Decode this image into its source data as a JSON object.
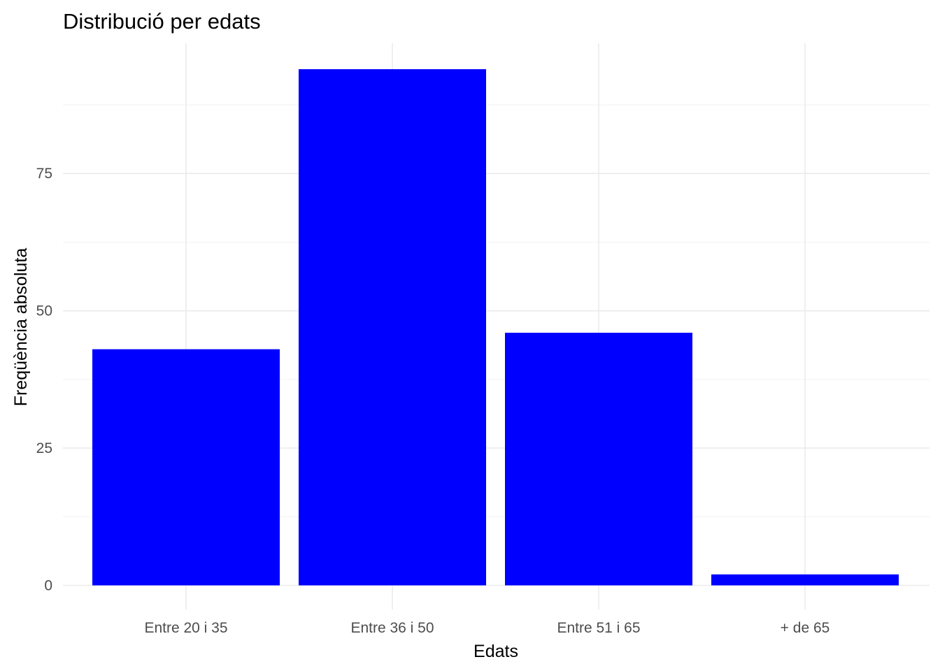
{
  "chart_data": {
    "type": "bar",
    "title": "Distribució per edats",
    "xlabel": "Edats",
    "ylabel": "Freqüència absoluta",
    "categories": [
      "Entre 20 i 35",
      "Entre 36 i 50",
      "Entre 51 i 65",
      "+ de 65"
    ],
    "values": [
      43,
      94,
      46,
      2
    ],
    "ylim": [
      0,
      98.6
    ],
    "yticks": [
      0,
      25,
      50,
      75
    ],
    "ytick_labels": [
      "0",
      "25",
      "50",
      "75"
    ],
    "grid": true,
    "legend": "none",
    "bar_color": "#0000ff"
  }
}
